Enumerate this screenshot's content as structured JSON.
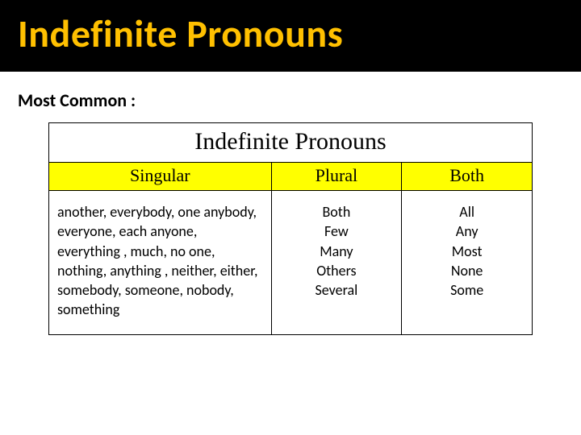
{
  "title": {
    "text": "Indefinite  Pronouns",
    "text_color": "#ffc000",
    "band_background": "#000000",
    "fontsize": 48,
    "fontweight": 700
  },
  "subtitle": {
    "text": "Most Common :",
    "fontsize": 22,
    "fontweight": 700,
    "color": "#000000"
  },
  "table": {
    "type": "table",
    "caption": "Indefinite Pronouns",
    "caption_font": "Times New Roman",
    "caption_fontsize": 30,
    "header_background": "#ffff00",
    "header_font": "Times New Roman",
    "header_fontsize": 22,
    "border_color": "#000000",
    "border_width": 1.5,
    "body_fontsize": 18,
    "background_color": "#ffffff",
    "columns": [
      {
        "key": "singular",
        "label": "Singular",
        "width_pct": 46,
        "align": "left"
      },
      {
        "key": "plural",
        "label": "Plural",
        "width_pct": 27,
        "align": "center"
      },
      {
        "key": "both",
        "label": "Both",
        "width_pct": 27,
        "align": "center"
      }
    ],
    "cells": {
      "singular": "another,  everybody,  one anybody, everyone, each anyone, everything , much, no one, nothing, anything , neither, either, somebody, someone, nobody, something",
      "plural_lines": [
        "Both",
        "Few",
        "Many",
        "Others",
        "Several"
      ],
      "both_lines": [
        "All",
        "Any",
        "Most",
        "None",
        "Some"
      ]
    }
  }
}
